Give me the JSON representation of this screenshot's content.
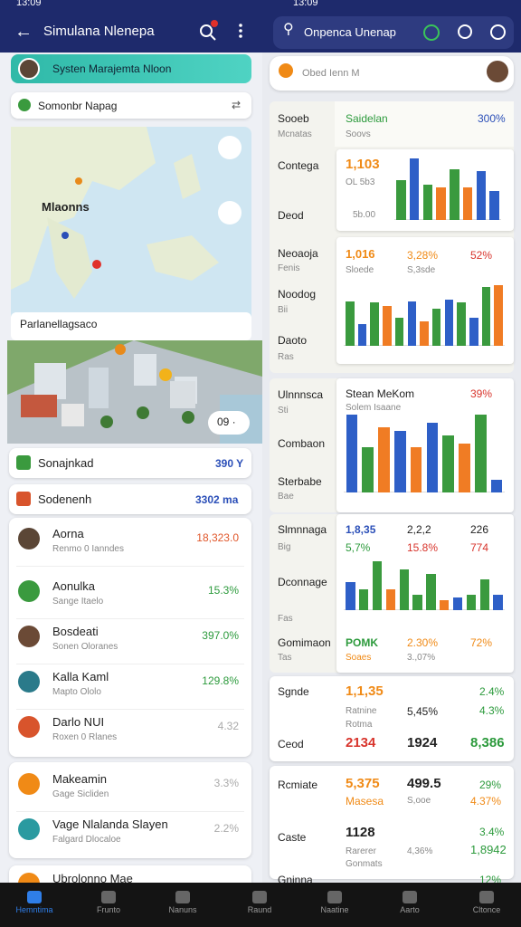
{
  "status": {
    "left_time": "13:09",
    "right_time": "13:09"
  },
  "left": {
    "title": "Simulana Nlenepa",
    "banner": "Systen Marajemta Nloon",
    "search": "Somonbr Napag",
    "map_place": "Mlaonns",
    "map_label": "Parlanellagsaco",
    "city_badge": "09 ·",
    "summary": [
      {
        "label": "Sonajnkad",
        "value": "390 Y"
      },
      {
        "label": "Sodenenh",
        "value": "3302 ma"
      }
    ],
    "items": [
      {
        "title": "Aorna",
        "subtitle": "Renmo 0 Ianndes",
        "value": "18,323.0",
        "color": "#e0562a"
      },
      {
        "title": "Aonulka",
        "subtitle": "Sange Itaelo",
        "value": "15.3%",
        "color": "#2c9a3c"
      },
      {
        "title": "Bosdeati",
        "subtitle": "Sonen Oloranes",
        "value": "397.0%",
        "color": "#2c9a3c"
      },
      {
        "title": "Kalla Kaml",
        "subtitle": "Mapto Ololo",
        "value": "129.8%",
        "color": "#2c9a3c"
      },
      {
        "title": "Darlo NUI",
        "subtitle": "Roxen 0 Rlanes",
        "value": "4.32",
        "color": "#aaaaaa"
      },
      {
        "title": "Makeamin",
        "subtitle": "Gage Sicliden",
        "value": "3.3%",
        "color": "#aaaaaa"
      },
      {
        "title": "Vage Nlalanda Slayen",
        "subtitle": "Falgard Dlocaloe",
        "value": "2.2%",
        "color": "#aaaaaa"
      },
      {
        "title": "Ubrolonno Mae"
      }
    ]
  },
  "right": {
    "search": "Onpenca Unenap",
    "profile": "Obed Ienn M",
    "panel1": {
      "col_head": "Sooeb",
      "col_sub": "Mcnatas",
      "head": "Saidelan",
      "head_sub": "Soovs",
      "head_value": "300%",
      "labels": [
        "Contega",
        "Deod",
        "Neoaoja",
        "Fenis",
        "Noodog",
        "Bii",
        "Daoto",
        "Ras"
      ],
      "card1": {
        "values": [
          "1,103",
          "OL 5b3",
          "5b.00"
        ],
        "bars": [
          62,
          95,
          55,
          50,
          78,
          50,
          75,
          45
        ],
        "colors": [
          "#3a9a3e",
          "#2e5fc7",
          "#3a9a3e",
          "#f07c24",
          "#3a9a3e",
          "#f07c24",
          "#2e5fc7",
          "#2e5fc7"
        ]
      },
      "card2": {
        "values": [
          "1,016",
          "3,28%",
          "52%",
          "Sloede",
          "S,3sde"
        ],
        "bars": [
          72,
          35,
          70,
          65,
          45,
          72,
          40,
          60,
          75,
          70,
          45,
          95,
          98
        ],
        "colors": [
          "#3a9a3e",
          "#2e5fc7",
          "#3a9a3e",
          "#f07c24",
          "#3a9a3e",
          "#2e5fc7",
          "#f07c24",
          "#3a9a3e",
          "#2e5fc7",
          "#3a9a3e",
          "#2e5fc7",
          "#3a9a3e",
          "#f07c24"
        ]
      }
    },
    "panel2": {
      "labels": [
        "Ulnnnsca",
        "Sti",
        "Combaon",
        "Sterbabe",
        "Bae"
      ],
      "title": "Stean MeKom",
      "subtitle": "Solem Isaane",
      "value": "39%",
      "bars": [
        95,
        55,
        80,
        75,
        55,
        85,
        70,
        60,
        95,
        15
      ],
      "colors": [
        "#2e5fc7",
        "#3a9a3e",
        "#f07c24",
        "#2e5fc7",
        "#f07c24",
        "#2e5fc7",
        "#3a9a3e",
        "#f07c24",
        "#3a9a3e",
        "#2e5fc7"
      ]
    },
    "panel3": {
      "labels": [
        "Slmnnaga",
        "Big",
        "Dconnage",
        "Fas",
        "Gomimaon",
        "Tas"
      ],
      "values": [
        "1,8,35",
        "2,2,2",
        "226",
        "5,7%",
        "15.8%",
        "774",
        "POMK",
        "2.30%",
        "72%",
        "Soaes",
        "3.,07%"
      ],
      "bars": [
        55,
        40,
        95,
        40,
        80,
        30,
        70,
        20,
        25,
        30,
        60,
        30
      ],
      "colors": [
        "#2e5fc7",
        "#3a9a3e",
        "#3a9a3e",
        "#f07c24",
        "#3a9a3e",
        "#3a9a3e",
        "#3a9a3e",
        "#f07c24",
        "#2e5fc7",
        "#3a9a3e",
        "#3a9a3e",
        "#2e5fc7"
      ]
    },
    "panel4": {
      "labels": [
        "Sgnde",
        "Ceod"
      ],
      "values": [
        "1,1,35",
        "2.4%",
        "Ratnine",
        "5,45%",
        "Rotma",
        "4.3%",
        "2134",
        "1924",
        "8,386"
      ]
    },
    "panel5": {
      "labels": [
        "Rcmiate",
        "Caste",
        "Gninna"
      ],
      "values": [
        "5,375",
        "499.5",
        "29%",
        "Masesa",
        "S,ooe",
        "4.37%",
        "1128",
        "3.4%",
        "Rarerer",
        "Gonmats",
        "4,36%",
        "1,8942",
        "12%"
      ]
    }
  },
  "nav": [
    "Hemntima",
    "Frunto",
    "Nanuns",
    "Raund",
    "Naatine",
    "Aarto",
    "Cltonce"
  ]
}
